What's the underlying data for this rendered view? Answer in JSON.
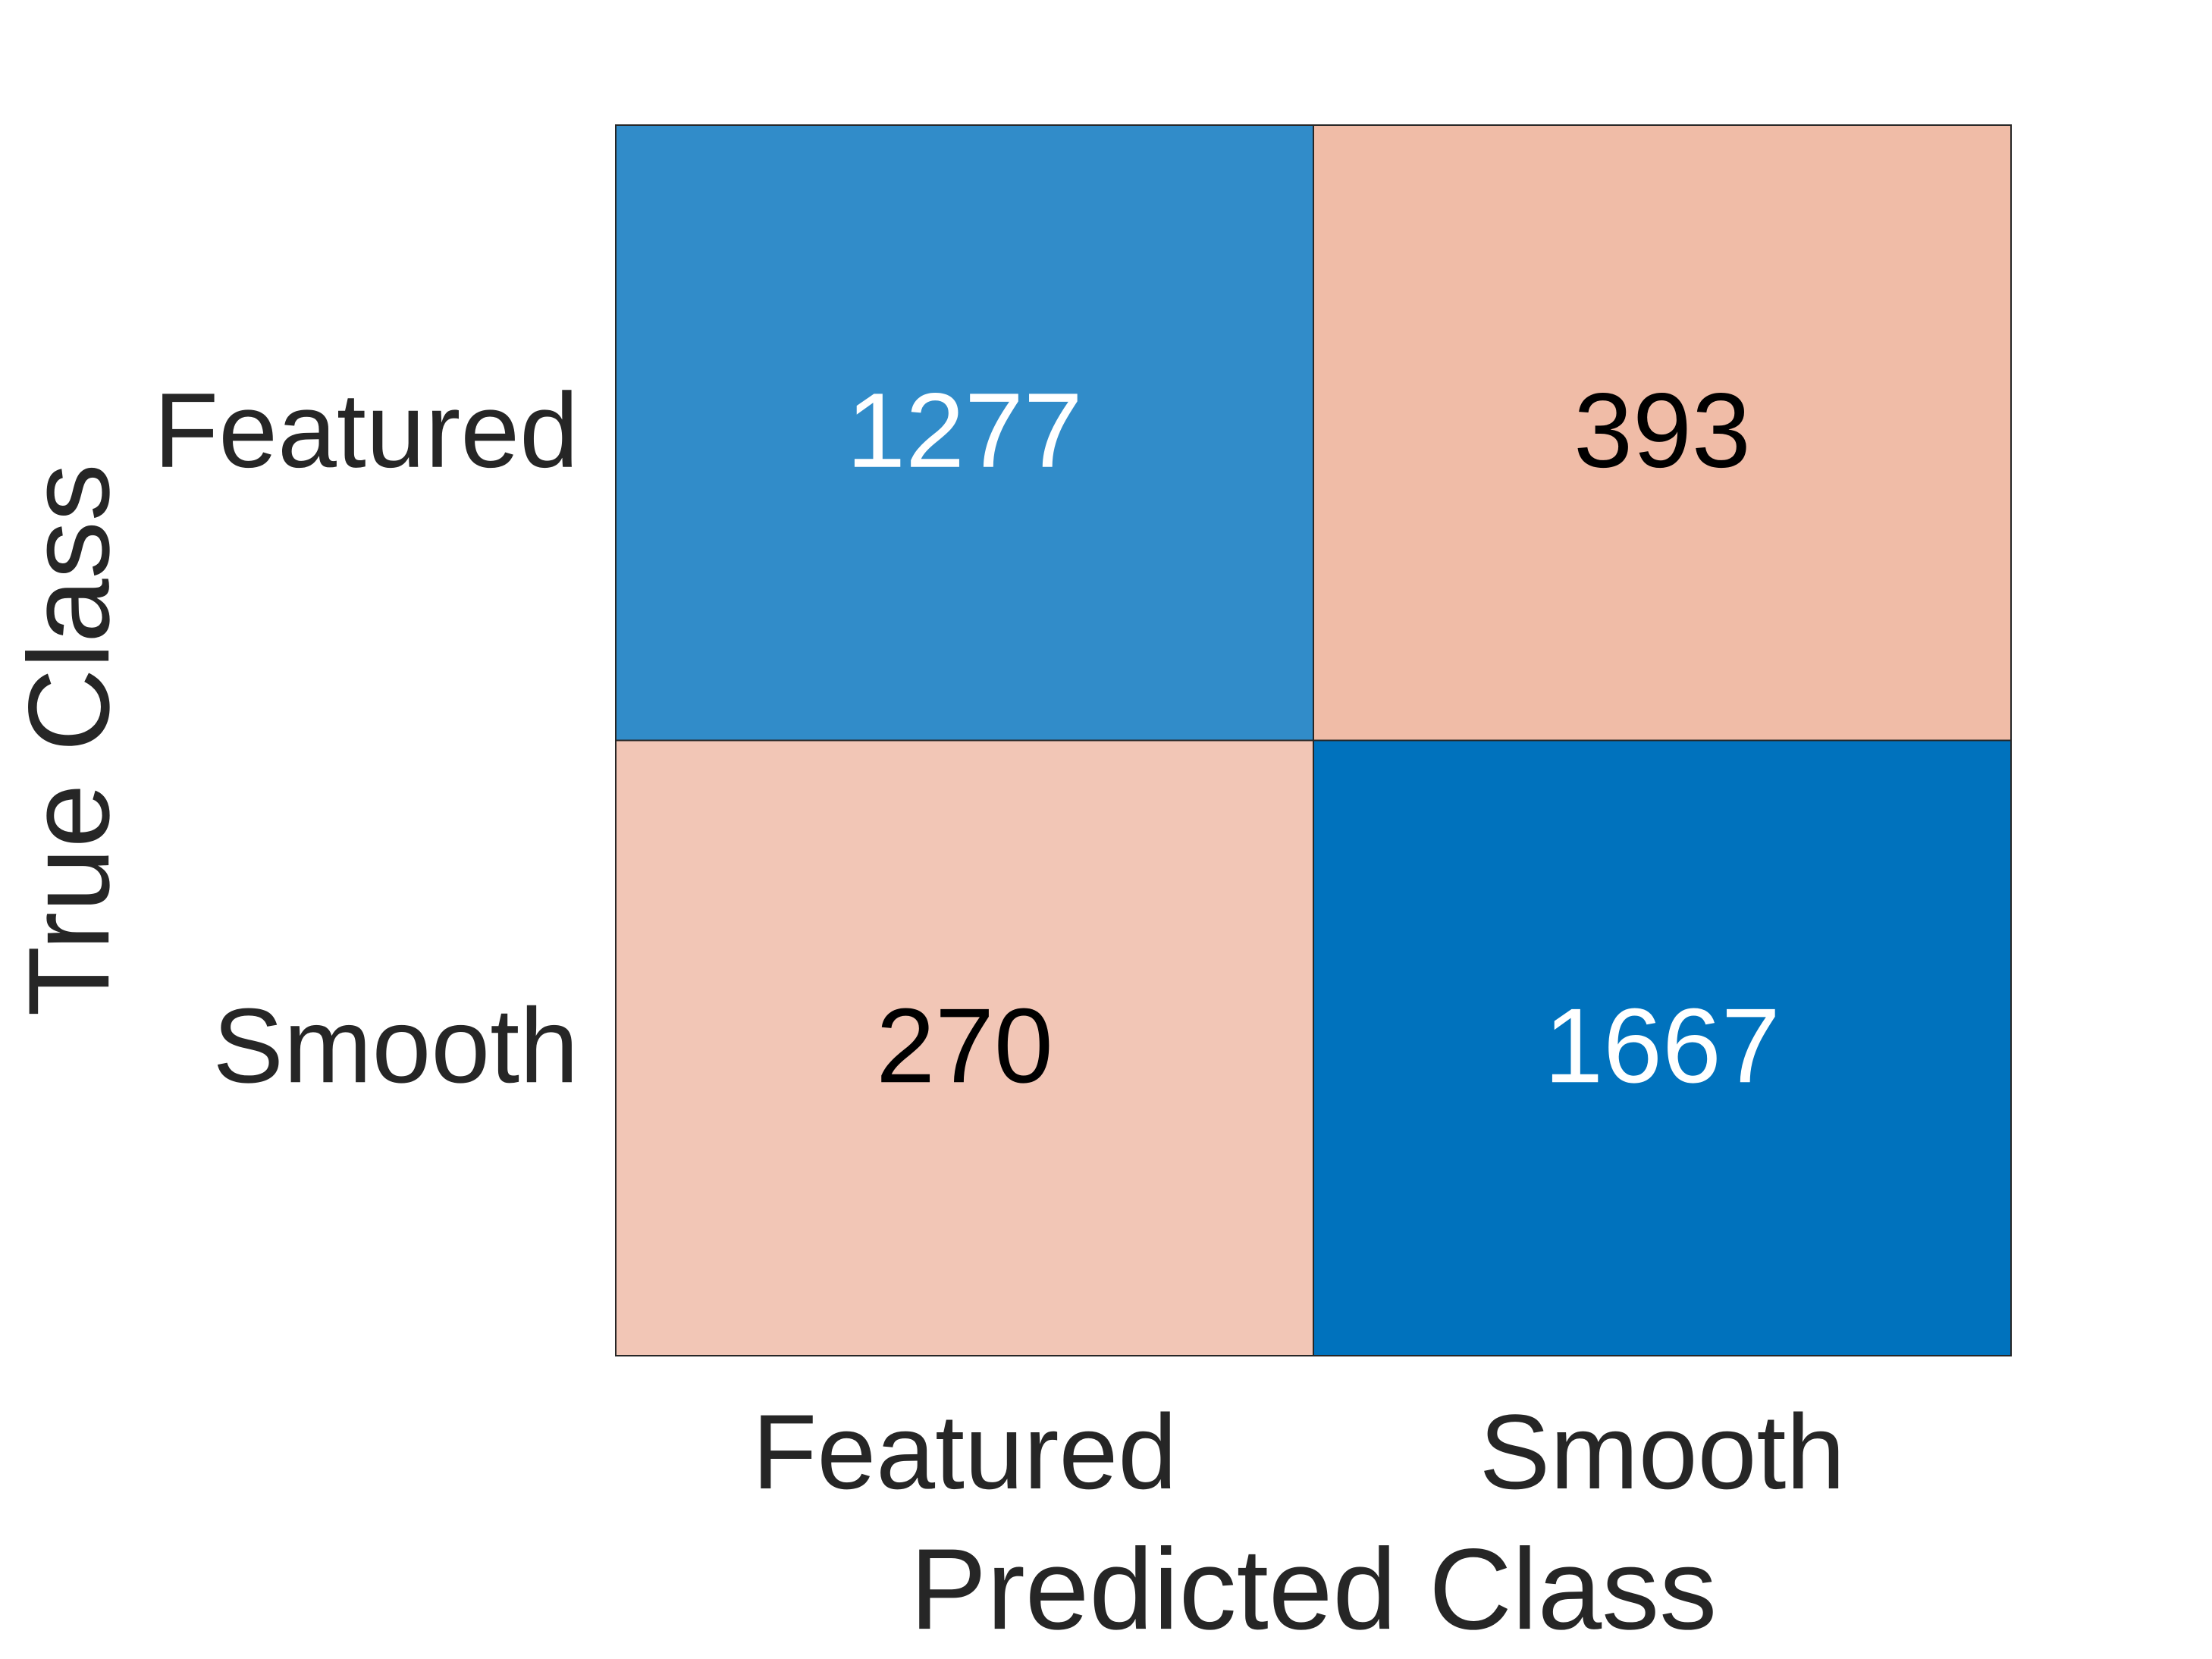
{
  "chart_data": {
    "type": "confusion_matrix",
    "x_label": "Predicted Class",
    "y_label": "True Class",
    "x_categories": [
      "Featured",
      "Smooth"
    ],
    "y_categories": [
      "Featured",
      "Smooth"
    ],
    "values": [
      [
        1277,
        393
      ],
      [
        270,
        1667
      ]
    ],
    "colors": [
      [
        "#318cc9",
        "#f0bca7"
      ],
      [
        "#f2c6b6",
        "#0072bd"
      ]
    ],
    "text_colors": [
      [
        "#ffffff",
        "#000000"
      ],
      [
        "#000000",
        "#ffffff"
      ]
    ]
  }
}
